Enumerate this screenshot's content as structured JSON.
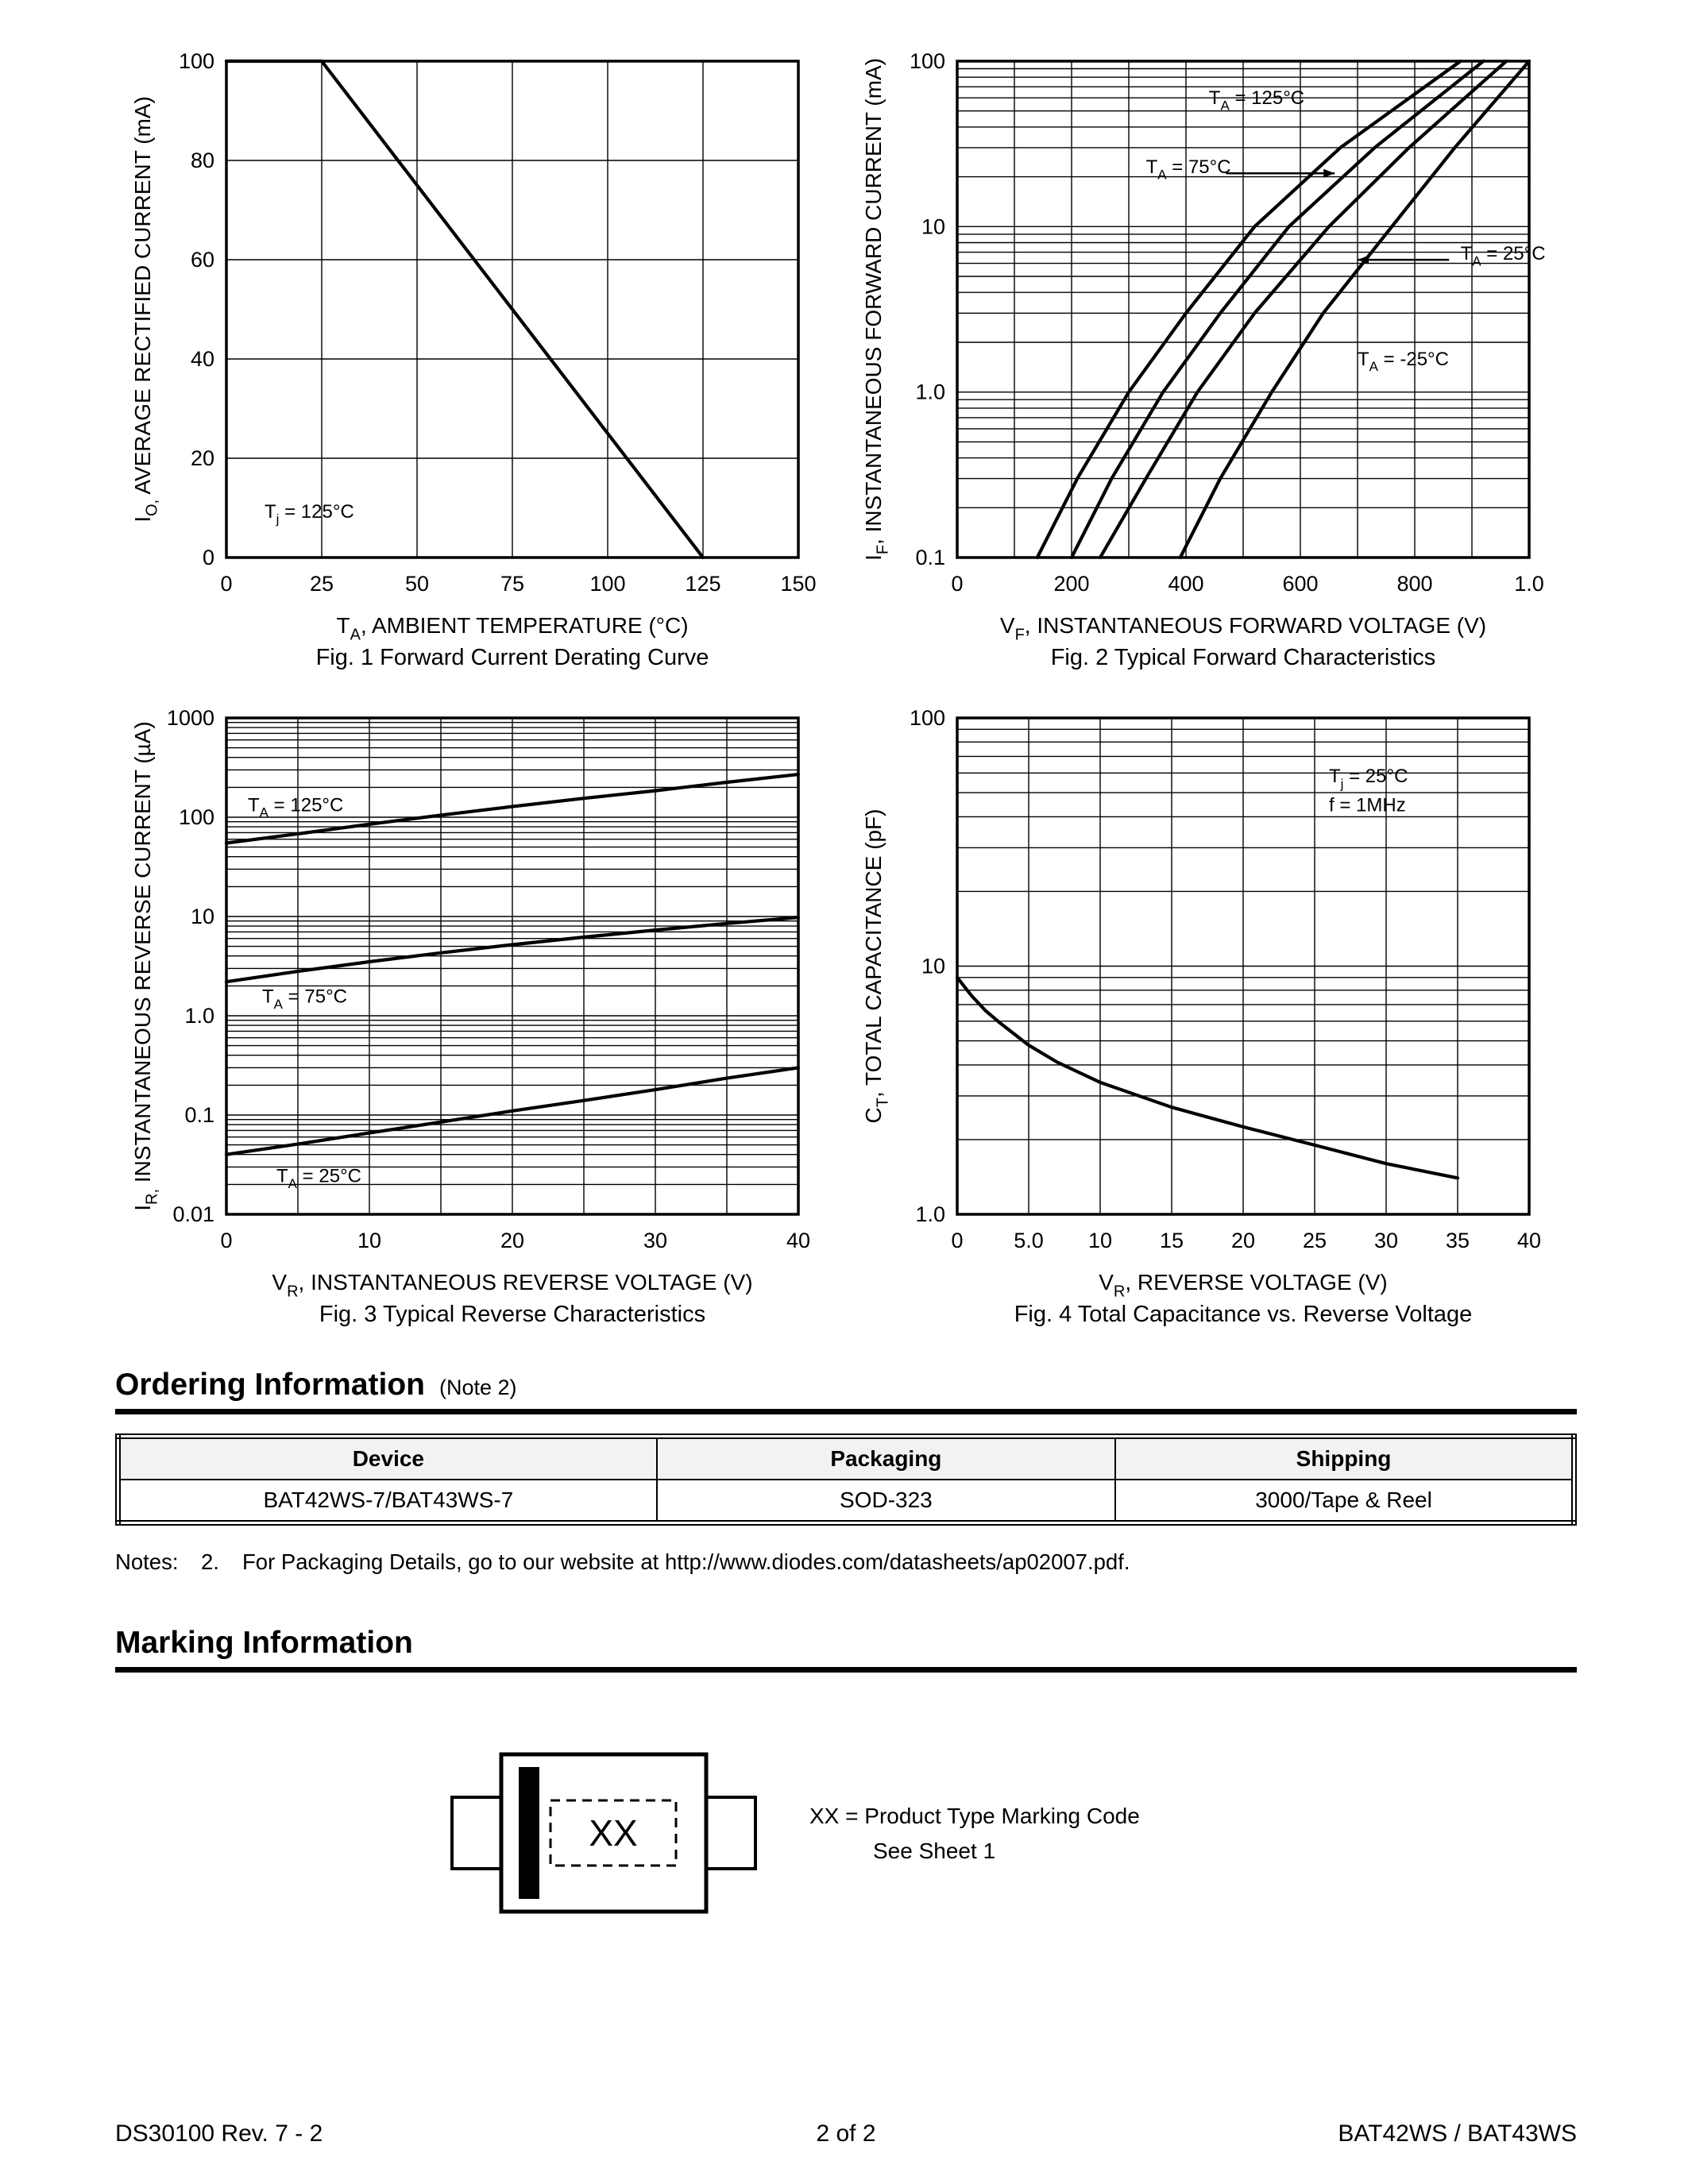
{
  "ordering": {
    "heading": "Ordering Information",
    "note_ref": "(Note 2)",
    "table": {
      "headers": [
        "Device",
        "Packaging",
        "Shipping"
      ],
      "rows": [
        [
          "BAT42WS-7/BAT43WS-7",
          "SOD-323",
          "3000/Tape & Reel"
        ]
      ]
    },
    "notes_label": "Notes:",
    "note_number": "2.",
    "note_text": "For Packaging Details, go to our website at ",
    "note_url": "http://www.diodes.com/datasheets/ap02007.pdf",
    "note_suffix": "."
  },
  "marking": {
    "heading": "Marking Information",
    "code": "XX",
    "legend_line1": "XX = Product Type Marking Code",
    "legend_line2": "See Sheet 1"
  },
  "footer": {
    "left": "DS30100 Rev. 7 - 2",
    "center": "2 of 2",
    "right": "BAT42WS / BAT43WS"
  },
  "chart_data": [
    {
      "id": "fig1",
      "type": "line",
      "caption": "Fig. 1  Forward Current Derating Curve",
      "xlabel_parts": [
        [
          "T",
          0
        ],
        [
          "A",
          1
        ],
        [
          ",  AMBIENT TEMPERATURE (°C)",
          0
        ]
      ],
      "ylabel_parts": [
        [
          "I",
          0
        ],
        [
          "O,",
          1
        ],
        [
          " AVERAGE RECTIFIED CURRENT (mA)",
          0
        ]
      ],
      "x": {
        "type": "linear",
        "min": 0,
        "max": 150,
        "ticks": [
          0,
          25,
          50,
          75,
          100,
          125,
          150
        ],
        "labels": [
          "0",
          "25",
          "50",
          "75",
          "100",
          "125",
          "150"
        ]
      },
      "y": {
        "type": "linear",
        "min": 0,
        "max": 100,
        "ticks": [
          0,
          20,
          40,
          60,
          80,
          100
        ],
        "labels": [
          "0",
          "20",
          "40",
          "60",
          "80",
          "100"
        ]
      },
      "series": [
        {
          "name": "IO-derating",
          "points": [
            [
              0,
              100
            ],
            [
              25,
              100
            ],
            [
              125,
              0
            ]
          ]
        }
      ],
      "annotations": [
        {
          "parts": [
            [
              "T",
              0
            ],
            [
              "j",
              1
            ],
            [
              " = 125°C",
              0
            ]
          ],
          "x": 10,
          "y": 8,
          "anchor": "start"
        }
      ]
    },
    {
      "id": "fig2",
      "type": "line",
      "caption": "Fig. 2  Typical Forward Characteristics",
      "xlabel_parts": [
        [
          "V",
          0
        ],
        [
          "F",
          1
        ],
        [
          ", INSTANTANEOUS FORWARD VOLTAGE (V)",
          0
        ]
      ],
      "ylabel_parts": [
        [
          "I",
          0
        ],
        [
          "F",
          1
        ],
        [
          ", INSTANTANEOUS FORWARD CURRENT (mA)",
          0
        ]
      ],
      "x": {
        "type": "linear",
        "min": 0,
        "max": 1,
        "ticks": [
          0,
          0.2,
          0.4,
          0.6,
          0.8,
          1
        ],
        "labels": [
          "0",
          "200",
          "400",
          "600",
          "800",
          "1.0"
        ],
        "grid": [
          0,
          0.1,
          0.2,
          0.3,
          0.4,
          0.5,
          0.6,
          0.7,
          0.8,
          0.9,
          1
        ]
      },
      "y": {
        "type": "log",
        "min": 0.1,
        "max": 100,
        "ticks": [
          0.1,
          1,
          10,
          100
        ],
        "labels": [
          "0.1",
          "1.0",
          "10",
          "100"
        ]
      },
      "series": [
        {
          "name": "TA = 125°C",
          "points": [
            [
              0.14,
              0.1
            ],
            [
              0.21,
              0.3
            ],
            [
              0.3,
              1
            ],
            [
              0.4,
              3
            ],
            [
              0.52,
              10
            ],
            [
              0.67,
              30
            ],
            [
              0.88,
              100
            ]
          ]
        },
        {
          "name": "TA = 75°C",
          "points": [
            [
              0.2,
              0.1
            ],
            [
              0.27,
              0.3
            ],
            [
              0.36,
              1
            ],
            [
              0.46,
              3
            ],
            [
              0.58,
              10
            ],
            [
              0.73,
              30
            ],
            [
              0.92,
              100
            ]
          ]
        },
        {
          "name": "TA = 25°C",
          "points": [
            [
              0.25,
              0.1
            ],
            [
              0.33,
              0.3
            ],
            [
              0.42,
              1
            ],
            [
              0.52,
              3
            ],
            [
              0.65,
              10
            ],
            [
              0.79,
              30
            ],
            [
              0.96,
              100
            ]
          ]
        },
        {
          "name": "TA = -25°C",
          "points": [
            [
              0.39,
              0.1
            ],
            [
              0.46,
              0.3
            ],
            [
              0.55,
              1
            ],
            [
              0.64,
              3
            ],
            [
              0.76,
              10
            ],
            [
              0.87,
              30
            ],
            [
              1.0,
              100
            ]
          ]
        }
      ],
      "annotations": [
        {
          "parts": [
            [
              "T",
              0
            ],
            [
              "A",
              1
            ],
            [
              " = 125°C",
              0
            ]
          ],
          "x": 0.44,
          "y": 55,
          "anchor": "start"
        },
        {
          "parts": [
            [
              "T",
              0
            ],
            [
              "A",
              1
            ],
            [
              " = 75°C",
              0
            ]
          ],
          "x": 0.33,
          "y": 21,
          "anchor": "start"
        },
        {
          "parts": [
            [
              "T",
              0
            ],
            [
              "A",
              1
            ],
            [
              " = 25°C",
              0
            ]
          ],
          "x": 0.88,
          "y": 6.3,
          "anchor": "start"
        },
        {
          "parts": [
            [
              "T",
              0
            ],
            [
              "A",
              1
            ],
            [
              " = -25°C",
              0
            ]
          ],
          "x": 0.7,
          "y": 1.45,
          "anchor": "start"
        }
      ],
      "arrows": [
        {
          "from": [
            0.47,
            21
          ],
          "to": [
            0.66,
            21
          ]
        },
        {
          "from": [
            0.86,
            6.3
          ],
          "to": [
            0.7,
            6.3
          ]
        }
      ]
    },
    {
      "id": "fig3",
      "type": "line",
      "caption": "Fig. 3  Typical Reverse Characteristics",
      "xlabel_parts": [
        [
          "V",
          0
        ],
        [
          "R",
          1
        ],
        [
          ", INSTANTANEOUS REVERSE VOLTAGE (V)",
          0
        ]
      ],
      "ylabel_parts": [
        [
          "I",
          0
        ],
        [
          "R,",
          1
        ],
        [
          " INSTANTANEOUS REVERSE CURRENT (µA)",
          0
        ]
      ],
      "x": {
        "type": "linear",
        "min": 0,
        "max": 40,
        "ticks": [
          0,
          10,
          20,
          30,
          40
        ],
        "labels": [
          "0",
          "10",
          "20",
          "30",
          "40"
        ],
        "grid": [
          0,
          5,
          10,
          15,
          20,
          25,
          30,
          35,
          40
        ]
      },
      "y": {
        "type": "log",
        "min": 0.01,
        "max": 1000,
        "ticks": [
          0.01,
          0.1,
          1,
          10,
          100,
          1000
        ],
        "labels": [
          "0.01",
          "0.1",
          "1.0",
          "10",
          "100",
          "1000"
        ]
      },
      "series": [
        {
          "name": "TA = 125°C",
          "points": [
            [
              0,
              55
            ],
            [
              5,
              68
            ],
            [
              10,
              85
            ],
            [
              15,
              105
            ],
            [
              20,
              128
            ],
            [
              25,
              155
            ],
            [
              30,
              185
            ],
            [
              35,
              225
            ],
            [
              40,
              270
            ]
          ]
        },
        {
          "name": "TA = 75°C",
          "points": [
            [
              0,
              2.2
            ],
            [
              5,
              2.8
            ],
            [
              10,
              3.5
            ],
            [
              15,
              4.3
            ],
            [
              20,
              5.2
            ],
            [
              25,
              6.2
            ],
            [
              30,
              7.3
            ],
            [
              35,
              8.5
            ],
            [
              40,
              9.8
            ]
          ]
        },
        {
          "name": "TA = 25°C",
          "points": [
            [
              0,
              0.04
            ],
            [
              5,
              0.051
            ],
            [
              10,
              0.066
            ],
            [
              15,
              0.085
            ],
            [
              20,
              0.11
            ],
            [
              25,
              0.14
            ],
            [
              30,
              0.18
            ],
            [
              35,
              0.235
            ],
            [
              40,
              0.3
            ]
          ]
        }
      ],
      "annotations": [
        {
          "parts": [
            [
              "T",
              0
            ],
            [
              "A",
              1
            ],
            [
              " = 125°C",
              0
            ]
          ],
          "x": 1.5,
          "y": 115,
          "anchor": "start"
        },
        {
          "parts": [
            [
              "T",
              0
            ],
            [
              "A",
              1
            ],
            [
              " = 75°C",
              0
            ]
          ],
          "x": 2.5,
          "y": 1.35,
          "anchor": "start"
        },
        {
          "parts": [
            [
              "T",
              0
            ],
            [
              "A",
              1
            ],
            [
              " = 25°C",
              0
            ]
          ],
          "x": 3.5,
          "y": 0.021,
          "anchor": "start"
        }
      ]
    },
    {
      "id": "fig4",
      "type": "line",
      "caption": "Fig. 4  Total Capacitance vs. Reverse Voltage",
      "xlabel_parts": [
        [
          "V",
          0
        ],
        [
          "R",
          1
        ],
        [
          ", REVERSE VOLTAGE (V)",
          0
        ]
      ],
      "ylabel_parts": [
        [
          "C",
          0
        ],
        [
          "T",
          1
        ],
        [
          ", TOTAL CAPACITANCE (pF)",
          0
        ]
      ],
      "x": {
        "type": "linear",
        "min": 0,
        "max": 40,
        "ticks": [
          0,
          5,
          10,
          15,
          20,
          25,
          30,
          35,
          40
        ],
        "labels": [
          "0",
          "5.0",
          "10",
          "15",
          "20",
          "25",
          "30",
          "35",
          "40"
        ]
      },
      "y": {
        "type": "log",
        "min": 1,
        "max": 100,
        "ticks": [
          1,
          10,
          100
        ],
        "labels": [
          "1.0",
          "10",
          "100"
        ]
      },
      "series": [
        {
          "name": "CT vs VR",
          "points": [
            [
              0,
              9
            ],
            [
              1,
              7.6
            ],
            [
              2,
              6.6
            ],
            [
              3,
              5.9
            ],
            [
              5,
              4.8
            ],
            [
              7,
              4.1
            ],
            [
              10,
              3.4
            ],
            [
              15,
              2.7
            ],
            [
              20,
              2.25
            ],
            [
              25,
              1.9
            ],
            [
              30,
              1.6
            ],
            [
              35,
              1.4
            ]
          ]
        }
      ],
      "annotations": [
        {
          "parts": [
            [
              "T",
              0
            ],
            [
              "j",
              1
            ],
            [
              " = 25°C",
              0
            ]
          ],
          "x": 26,
          "y": 55,
          "anchor": "start"
        },
        {
          "parts": [
            [
              "f = 1MHz",
              0
            ]
          ],
          "x": 26,
          "y": 42,
          "anchor": "start"
        }
      ]
    }
  ]
}
